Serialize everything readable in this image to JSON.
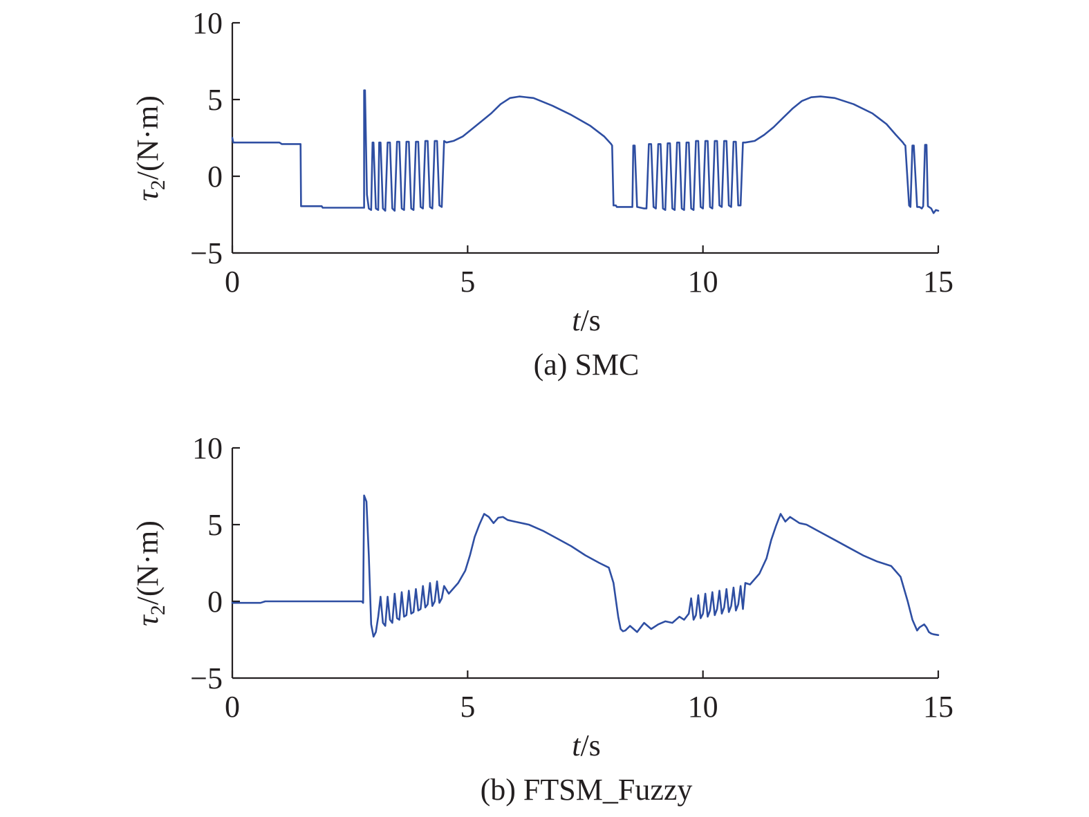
{
  "chart_data": [
    {
      "type": "line",
      "caption": "(a) SMC",
      "xlabel": {
        "var": "t",
        "unit": "/s"
      },
      "ylabel": {
        "sym": "τ",
        "sub": "2",
        "unit": "/(N·m)"
      },
      "xlim": [
        0,
        15
      ],
      "ylim": [
        -5,
        10
      ],
      "xticks": [
        0,
        5,
        10,
        15
      ],
      "yticks": [
        -5,
        0,
        5,
        10
      ],
      "xtick_labels": [
        "0",
        "5",
        "10",
        "15"
      ],
      "ytick_labels": [
        "−5",
        "0",
        "5",
        "10"
      ],
      "grid": false,
      "color": "#2e4ea2",
      "series": [
        {
          "x": [
            0,
            0.02,
            0.05,
            1.0,
            1.05,
            1.45,
            1.46,
            1.9,
            1.92,
            2.8,
            2.8,
            2.82,
            2.86,
            2.9,
            2.95,
            2.98,
            3.0,
            3.05,
            3.1,
            3.12,
            3.15,
            3.2,
            3.25,
            3.3,
            3.35,
            3.4,
            3.45,
            3.5,
            3.55,
            3.6,
            3.65,
            3.7,
            3.75,
            3.8,
            3.85,
            3.9,
            3.95,
            4.0,
            4.05,
            4.1,
            4.15,
            4.2,
            4.25,
            4.3,
            4.35,
            4.4,
            4.45,
            4.5,
            4.55,
            4.7,
            4.9,
            5.1,
            5.3,
            5.5,
            5.7,
            5.9,
            6.1,
            6.4,
            6.8,
            7.2,
            7.6,
            7.9,
            8.05,
            8.07,
            8.1,
            8.12,
            8.15,
            8.17,
            8.5,
            8.52,
            8.55,
            8.6,
            8.75,
            8.8,
            8.85,
            8.9,
            8.95,
            9.0,
            9.05,
            9.1,
            9.15,
            9.2,
            9.25,
            9.3,
            9.35,
            9.4,
            9.45,
            9.5,
            9.55,
            9.6,
            9.65,
            9.7,
            9.75,
            9.8,
            9.85,
            9.9,
            9.95,
            10.0,
            10.05,
            10.1,
            10.15,
            10.2,
            10.25,
            10.3,
            10.35,
            10.4,
            10.45,
            10.5,
            10.55,
            10.6,
            10.65,
            10.7,
            10.75,
            10.8,
            10.85,
            10.9,
            11.1,
            11.3,
            11.5,
            11.7,
            11.9,
            12.1,
            12.3,
            12.5,
            12.8,
            13.2,
            13.6,
            13.9,
            14.1,
            14.25,
            14.27,
            14.3,
            14.38,
            14.41,
            14.45,
            14.48,
            14.55,
            14.6,
            14.65,
            14.68,
            14.72,
            14.75,
            14.78,
            14.85,
            14.9,
            14.95,
            15.0
          ],
          "y": [
            2.5,
            2.2,
            2.2,
            2.2,
            2.1,
            2.1,
            -1.95,
            -1.95,
            -2.05,
            -2.05,
            5.6,
            5.6,
            -1.2,
            -2.1,
            -2.2,
            2.2,
            2.2,
            -2.1,
            -2.2,
            2.2,
            2.2,
            -2.1,
            -2.25,
            2.2,
            2.2,
            -2.1,
            -2.25,
            2.25,
            2.25,
            -2.1,
            -2.2,
            2.25,
            2.25,
            -2.1,
            -2.2,
            2.25,
            2.25,
            -2.0,
            -2.1,
            2.3,
            2.3,
            -2.0,
            -2.1,
            2.3,
            2.3,
            -1.9,
            -2.0,
            2.3,
            2.2,
            2.3,
            2.6,
            3.1,
            3.6,
            4.1,
            4.7,
            5.1,
            5.2,
            5.1,
            4.6,
            4.0,
            3.3,
            2.6,
            2.1,
            2.0,
            -1.9,
            -1.9,
            -1.9,
            -2.0,
            -2.0,
            2.0,
            2.0,
            -2.0,
            -2.1,
            -2.1,
            2.1,
            2.1,
            -2.0,
            -2.1,
            2.1,
            2.1,
            -2.1,
            -2.2,
            2.15,
            2.15,
            -2.1,
            -2.2,
            2.2,
            2.2,
            -2.1,
            -2.2,
            2.2,
            2.2,
            -2.1,
            -2.2,
            2.3,
            2.3,
            -2.0,
            -2.1,
            2.3,
            2.3,
            -2.0,
            -2.1,
            2.3,
            2.3,
            -1.9,
            -2.0,
            2.3,
            2.3,
            -1.9,
            -2.0,
            2.25,
            2.25,
            -1.9,
            -1.9,
            2.2,
            2.2,
            2.3,
            2.7,
            3.2,
            3.8,
            4.4,
            4.9,
            5.15,
            5.2,
            5.1,
            4.7,
            4.1,
            3.4,
            2.7,
            2.2,
            2.1,
            2.0,
            -1.9,
            -2.0,
            2.0,
            2.0,
            -2.0,
            -2.0,
            -2.1,
            -1.95,
            2.05,
            2.05,
            -1.95,
            -2.1,
            -2.4,
            -2.2,
            -2.25
          ]
        }
      ]
    },
    {
      "type": "line",
      "caption": "(b) FTSM_Fuzzy",
      "xlabel": {
        "var": "t",
        "unit": "/s"
      },
      "ylabel": {
        "sym": "τ",
        "sub": "2",
        "unit": "/(N·m)"
      },
      "xlim": [
        0,
        15
      ],
      "ylim": [
        -5,
        10
      ],
      "xticks": [
        0,
        5,
        10,
        15
      ],
      "yticks": [
        -5,
        0,
        5,
        10
      ],
      "xtick_labels": [
        "0",
        "5",
        "10",
        "15"
      ],
      "ytick_labels": [
        "−5",
        "0",
        "5",
        "10"
      ],
      "grid": false,
      "color": "#2e4ea2",
      "series": [
        {
          "x": [
            0,
            0.6,
            0.7,
            2.4,
            2.6,
            2.75,
            2.78,
            2.8,
            2.85,
            2.9,
            2.95,
            3.0,
            3.05,
            3.1,
            3.15,
            3.2,
            3.25,
            3.3,
            3.35,
            3.4,
            3.45,
            3.5,
            3.55,
            3.6,
            3.65,
            3.7,
            3.75,
            3.8,
            3.85,
            3.9,
            3.95,
            4.0,
            4.05,
            4.1,
            4.15,
            4.2,
            4.25,
            4.3,
            4.35,
            4.4,
            4.45,
            4.5,
            4.6,
            4.8,
            4.95,
            5.05,
            5.15,
            5.25,
            5.35,
            5.45,
            5.55,
            5.65,
            5.75,
            5.85,
            6.0,
            6.3,
            6.6,
            6.9,
            7.2,
            7.5,
            7.8,
            8.0,
            8.1,
            8.2,
            8.25,
            8.3,
            8.35,
            8.45,
            8.6,
            8.75,
            8.9,
            9.05,
            9.2,
            9.35,
            9.5,
            9.6,
            9.7,
            9.75,
            9.8,
            9.85,
            9.9,
            9.95,
            10.0,
            10.05,
            10.1,
            10.15,
            10.2,
            10.25,
            10.3,
            10.35,
            10.4,
            10.45,
            10.5,
            10.55,
            10.6,
            10.65,
            10.7,
            10.75,
            10.8,
            10.85,
            10.9,
            11.0,
            11.2,
            11.35,
            11.45,
            11.55,
            11.65,
            11.75,
            11.85,
            11.95,
            12.05,
            12.2,
            12.5,
            12.8,
            13.1,
            13.4,
            13.7,
            14.0,
            14.2,
            14.35,
            14.45,
            14.55,
            14.6,
            14.7,
            14.75,
            14.8,
            14.85,
            14.9,
            15.0
          ],
          "y": [
            -0.1,
            -0.1,
            0.0,
            0.0,
            0.0,
            0.0,
            -0.1,
            6.9,
            6.5,
            3.0,
            -1.5,
            -2.3,
            -2.0,
            -1.0,
            0.3,
            -1.4,
            -1.6,
            0.3,
            -1.2,
            -1.4,
            0.5,
            -1.1,
            -1.2,
            0.6,
            -1.0,
            -0.9,
            0.7,
            -0.8,
            -0.7,
            0.8,
            -0.6,
            -0.5,
            1.0,
            -0.4,
            -0.2,
            1.2,
            -0.3,
            0.0,
            1.3,
            -0.1,
            0.2,
            1.0,
            0.5,
            1.2,
            2.0,
            3.0,
            4.2,
            5.0,
            5.7,
            5.5,
            5.1,
            5.45,
            5.5,
            5.3,
            5.2,
            5.0,
            4.6,
            4.1,
            3.6,
            3.0,
            2.5,
            2.2,
            1.2,
            -1.0,
            -1.8,
            -1.95,
            -1.9,
            -1.6,
            -2.0,
            -1.4,
            -1.8,
            -1.5,
            -1.3,
            -1.4,
            -1.0,
            -1.2,
            -0.8,
            0.2,
            -1.2,
            -0.9,
            0.4,
            -1.1,
            -0.8,
            0.5,
            -1.0,
            -0.6,
            0.6,
            -0.9,
            -0.5,
            0.7,
            -0.8,
            -0.4,
            0.8,
            -0.7,
            -0.3,
            0.9,
            -0.6,
            -0.2,
            1.0,
            -0.5,
            1.2,
            1.1,
            1.8,
            2.8,
            4.0,
            4.9,
            5.7,
            5.2,
            5.5,
            5.3,
            5.1,
            5.0,
            4.5,
            4.0,
            3.5,
            3.0,
            2.6,
            2.3,
            1.6,
            0.0,
            -1.2,
            -1.9,
            -1.7,
            -1.5,
            -1.7,
            -2.0,
            -2.1,
            -2.15,
            -2.2
          ]
        }
      ]
    }
  ]
}
